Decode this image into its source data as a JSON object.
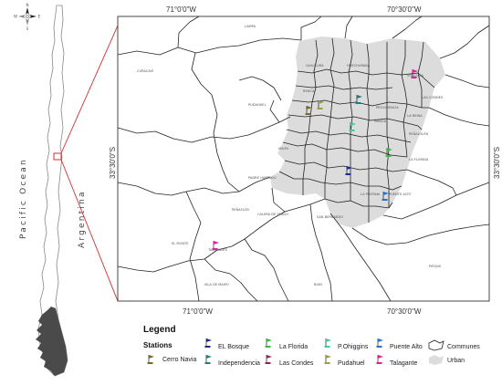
{
  "coords": {
    "top_left": "71°0'0\"W",
    "top_right": "70°30'0\"W",
    "bottom_left": "71°0'0\"W",
    "bottom_right": "70°30'0\"W",
    "left_lat": "33°30'0\"S",
    "right_lat": "33°30'0\"S"
  },
  "overview": {
    "ocean": "Pacific Ocean",
    "country": "Argentina",
    "north": "N",
    "south": "S",
    "east": "E",
    "west": "W"
  },
  "communes": {
    "lampa": "LAMPA",
    "curacavi": "CURACAVÍ",
    "pudahuel": "PUDAHUEL",
    "quilicura": "QUILICURA",
    "huechuraba": "HUECHURABA",
    "vitacura": "VITACURA",
    "las_condes": "LAS CONDES",
    "renca": "RENCA",
    "providencia": "PROVIDENCIA",
    "nunoa": "ÑUÑOA",
    "la_reina": "LA REINA",
    "penalolen": "PEÑALOLÉN",
    "maipu": "MAIPÚ",
    "la_florida": "LA FLORIDA",
    "padre_hurtado": "PADRE HURTADO",
    "penaflor": "PEÑAFLOR",
    "calera_de_tango": "CALERA DE TANGO",
    "la_pintana": "LA PINTANA",
    "puente_alto": "PUENTE ALTO",
    "san_bernardo": "SAN BERNARDO",
    "el_monte": "EL MONTE",
    "talagante": "TALAGANTE",
    "isla_de_maipo": "ISLA DE MAIPO",
    "buin": "BUIN",
    "pirque": "PIRQUE"
  },
  "legend": {
    "title": "Legend",
    "stations_title": "Stations",
    "communes_label": "Communes",
    "urban_label": "Urban",
    "stations": [
      {
        "name": "Cerro Navia",
        "color": "#7a6a2a"
      },
      {
        "name": "EL Bosque",
        "color": "#1f2a8a"
      },
      {
        "name": "Independencia",
        "color": "#1d7f7a"
      },
      {
        "name": "La Florida",
        "color": "#3fb94a"
      },
      {
        "name": "Las Condes",
        "color": "#8a2a5a"
      },
      {
        "name": "P.Ohiggins",
        "color": "#3fc7a0"
      },
      {
        "name": "Pudahuel",
        "color": "#9aa03a"
      },
      {
        "name": "Puente Alto",
        "color": "#2a6fd0"
      },
      {
        "name": "Talagante",
        "color": "#e21f9a"
      }
    ]
  }
}
